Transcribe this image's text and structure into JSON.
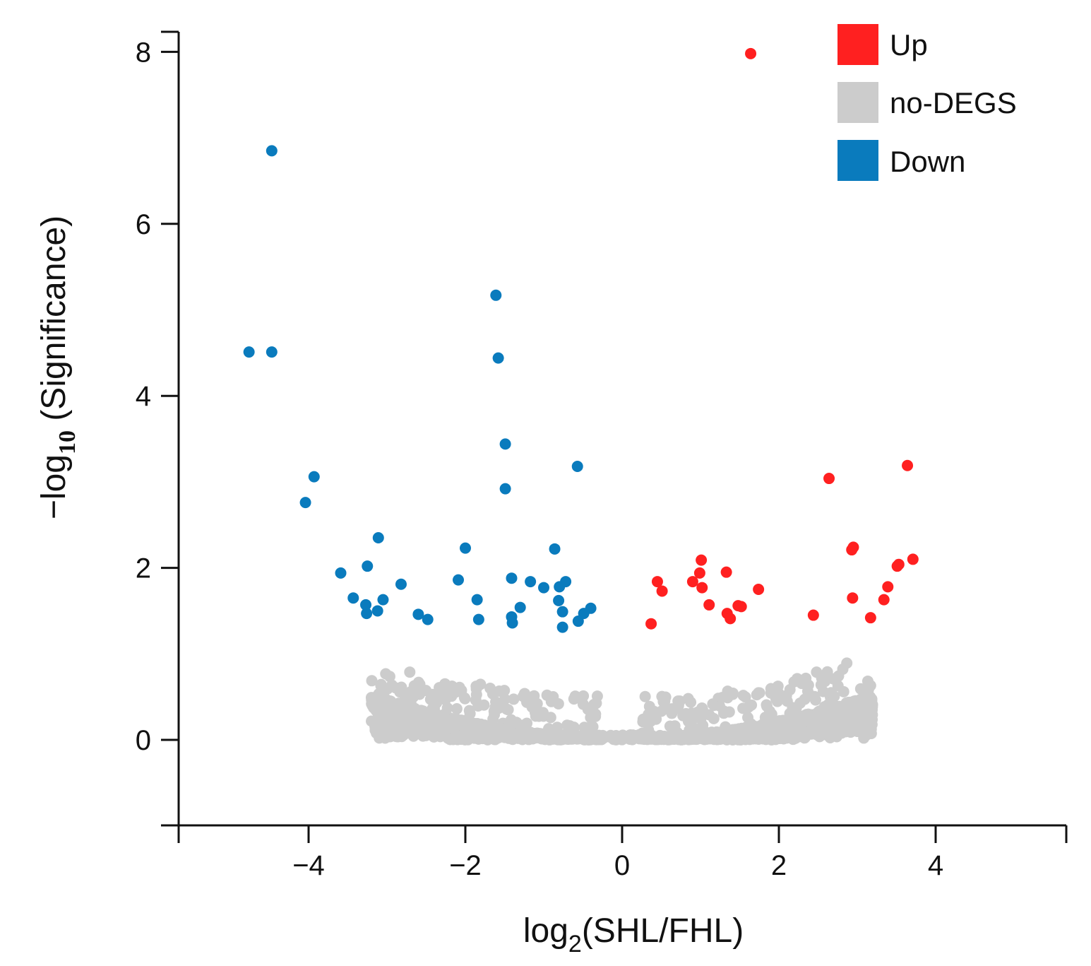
{
  "chart_data": {
    "type": "scatter",
    "title": "",
    "xlabel": {
      "main": "log",
      "sub": "2",
      "rest": "(SHL/FHL)"
    },
    "ylabel": {
      "main": "−log",
      "sub": "10",
      "rest": " (Significance)"
    },
    "xlim": [
      -5.7,
      5.7
    ],
    "ylim": [
      -1,
      8.2
    ],
    "xticks": [
      -4,
      -2,
      0,
      2,
      4
    ],
    "xtick_labels": [
      "−4",
      "−2",
      "0",
      "2",
      "4"
    ],
    "yticks": [
      0,
      2,
      4,
      6,
      8
    ],
    "ytick_labels": [
      "0",
      "2",
      "4",
      "6",
      "8"
    ],
    "grid": false,
    "legend_position": "top-right",
    "series": [
      {
        "name": "Up",
        "color": "#ff2020",
        "points": [
          [
            1.64,
            7.98
          ],
          [
            3.64,
            3.19
          ],
          [
            2.64,
            3.04
          ],
          [
            2.93,
            2.21
          ],
          [
            2.95,
            2.24
          ],
          [
            3.71,
            2.1
          ],
          [
            3.51,
            2.02
          ],
          [
            3.53,
            2.04
          ],
          [
            3.39,
            1.78
          ],
          [
            3.34,
            1.63
          ],
          [
            2.94,
            1.65
          ],
          [
            3.17,
            1.42
          ],
          [
            2.44,
            1.45
          ],
          [
            1.74,
            1.75
          ],
          [
            1.33,
            1.95
          ],
          [
            1.01,
            2.09
          ],
          [
            0.99,
            1.94
          ],
          [
            1.02,
            1.77
          ],
          [
            0.9,
            1.84
          ],
          [
            0.45,
            1.84
          ],
          [
            0.51,
            1.73
          ],
          [
            1.11,
            1.57
          ],
          [
            1.48,
            1.56
          ],
          [
            1.52,
            1.55
          ],
          [
            1.34,
            1.47
          ],
          [
            1.38,
            1.41
          ],
          [
            0.37,
            1.35
          ]
        ]
      },
      {
        "name": "no-DEGS",
        "color": "#cccccc",
        "points": []
      },
      {
        "name": "Down",
        "color": "#0a7bbd",
        "points": [
          [
            -4.47,
            6.85
          ],
          [
            -4.76,
            4.51
          ],
          [
            -4.47,
            4.51
          ],
          [
            -1.61,
            5.17
          ],
          [
            -1.58,
            4.44
          ],
          [
            -1.49,
            3.44
          ],
          [
            -1.49,
            2.92
          ],
          [
            -0.57,
            3.18
          ],
          [
            -3.93,
            3.06
          ],
          [
            -4.04,
            2.76
          ],
          [
            -3.11,
            2.35
          ],
          [
            -2.0,
            2.23
          ],
          [
            -0.86,
            2.22
          ],
          [
            -3.25,
            2.02
          ],
          [
            -3.59,
            1.94
          ],
          [
            -2.09,
            1.86
          ],
          [
            -2.82,
            1.81
          ],
          [
            -1.41,
            1.88
          ],
          [
            -1.17,
            1.84
          ],
          [
            -1.0,
            1.77
          ],
          [
            -0.8,
            1.78
          ],
          [
            -0.72,
            1.84
          ],
          [
            -3.43,
            1.65
          ],
          [
            -3.27,
            1.57
          ],
          [
            -3.05,
            1.63
          ],
          [
            -1.85,
            1.63
          ],
          [
            -0.81,
            1.62
          ],
          [
            -3.26,
            1.47
          ],
          [
            -3.12,
            1.5
          ],
          [
            -1.3,
            1.54
          ],
          [
            -0.76,
            1.49
          ],
          [
            -0.4,
            1.53
          ],
          [
            -0.49,
            1.47
          ],
          [
            -2.6,
            1.46
          ],
          [
            -2.48,
            1.4
          ],
          [
            -1.83,
            1.4
          ],
          [
            -1.41,
            1.43
          ],
          [
            -1.4,
            1.36
          ],
          [
            -0.56,
            1.38
          ],
          [
            -0.76,
            1.31
          ]
        ]
      }
    ]
  }
}
